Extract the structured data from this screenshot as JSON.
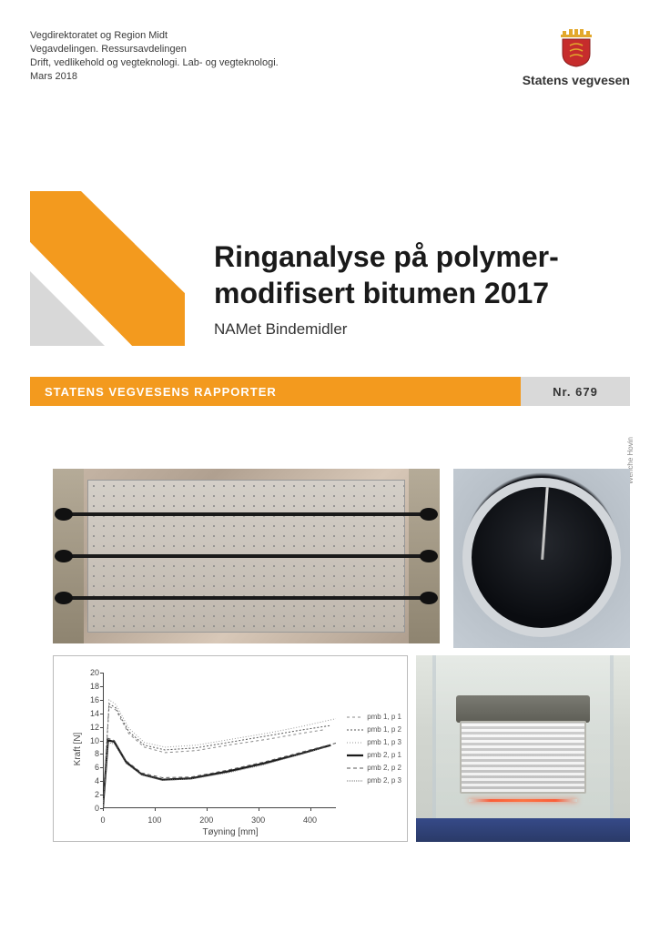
{
  "header": {
    "line1": "Vegdirektoratet og Region Midt",
    "line2": "Vegavdelingen. Ressursavdelingen",
    "line3": "Drift, vedlikehold og vegteknologi. Lab- og vegteknologi.",
    "line4": "Mars 2018"
  },
  "logo": {
    "text": "Statens vegvesen",
    "crown_color": "#e2a82c",
    "shield_color": "#c62c2c"
  },
  "geometric": {
    "orange": "#f39a1e",
    "gray": "#d8d8d8"
  },
  "title": {
    "line1": "Ringanalyse på polymer-",
    "line2": "modifisert bitumen 2017",
    "subtitle": "NAMet Bindemidler"
  },
  "banner": {
    "left": "STATENS VEGVESENS RAPPORTER",
    "right": "Nr. 679",
    "left_bg": "#f39a1e",
    "right_bg": "#d9d9d9"
  },
  "photo_credit": "Wenche Hovin",
  "chart": {
    "type": "line",
    "xlabel": "Tøyning [mm]",
    "ylabel": "Kraft [N]",
    "xlim": [
      0,
      450
    ],
    "ylim": [
      0,
      20
    ],
    "xtick_step": 100,
    "ytick_step": 2,
    "xticks": [
      0,
      100,
      200,
      300,
      400
    ],
    "yticks": [
      0,
      2,
      4,
      6,
      8,
      10,
      12,
      14,
      16,
      18,
      20
    ],
    "background_color": "#ffffff",
    "grid_color": "#e0e0e0",
    "axis_color": "#444444",
    "label_fontsize": 10,
    "tick_fontsize": 9,
    "legend_fontsize": 8,
    "series": [
      {
        "name": "pmb 1, p 1",
        "color": "#888888",
        "dash": "3,3",
        "width": 1,
        "points": [
          [
            0,
            0
          ],
          [
            12,
            15
          ],
          [
            25,
            14.5
          ],
          [
            50,
            11
          ],
          [
            80,
            9
          ],
          [
            120,
            8.2
          ],
          [
            180,
            8.5
          ],
          [
            250,
            9.4
          ],
          [
            320,
            10.2
          ],
          [
            380,
            11
          ],
          [
            430,
            11.6
          ]
        ]
      },
      {
        "name": "pmb 1, p 2",
        "color": "#555555",
        "dash": "2,2",
        "width": 1,
        "points": [
          [
            0,
            0
          ],
          [
            12,
            15.4
          ],
          [
            25,
            14.8
          ],
          [
            50,
            11.3
          ],
          [
            80,
            9.3
          ],
          [
            120,
            8.6
          ],
          [
            180,
            8.9
          ],
          [
            250,
            9.8
          ],
          [
            320,
            10.7
          ],
          [
            380,
            11.5
          ],
          [
            440,
            12.2
          ]
        ]
      },
      {
        "name": "pmb 1, p 3",
        "color": "#999999",
        "dash": "1,2",
        "width": 1,
        "points": [
          [
            0,
            0
          ],
          [
            12,
            16
          ],
          [
            25,
            15.3
          ],
          [
            50,
            11.8
          ],
          [
            80,
            9.7
          ],
          [
            120,
            9
          ],
          [
            180,
            9.3
          ],
          [
            250,
            10.2
          ],
          [
            320,
            11.1
          ],
          [
            380,
            12
          ],
          [
            450,
            13.2
          ]
        ]
      },
      {
        "name": "pmb 2, p 1",
        "color": "#1a1a1a",
        "dash": "",
        "width": 2.2,
        "points": [
          [
            0,
            0
          ],
          [
            10,
            10
          ],
          [
            22,
            9.8
          ],
          [
            45,
            6.8
          ],
          [
            75,
            5
          ],
          [
            115,
            4.2
          ],
          [
            170,
            4.4
          ],
          [
            240,
            5.4
          ],
          [
            310,
            6.6
          ],
          [
            380,
            8
          ],
          [
            440,
            9.3
          ]
        ]
      },
      {
        "name": "pmb 2, p 2",
        "color": "#555555",
        "dash": "4,3",
        "width": 1,
        "points": [
          [
            0,
            0
          ],
          [
            10,
            10.3
          ],
          [
            22,
            10
          ],
          [
            45,
            7
          ],
          [
            75,
            5.2
          ],
          [
            115,
            4.5
          ],
          [
            170,
            4.6
          ],
          [
            240,
            5.6
          ],
          [
            310,
            6.8
          ],
          [
            380,
            8.2
          ],
          [
            450,
            9.6
          ]
        ]
      },
      {
        "name": "pmb 2, p 3",
        "color": "#777777",
        "dash": "1,1",
        "width": 1,
        "points": [
          [
            0,
            0
          ],
          [
            10,
            9.7
          ],
          [
            22,
            9.5
          ],
          [
            45,
            6.6
          ],
          [
            75,
            4.9
          ],
          [
            115,
            4.1
          ],
          [
            170,
            4.3
          ],
          [
            240,
            5.2
          ],
          [
            310,
            6.4
          ],
          [
            370,
            7.7
          ],
          [
            430,
            9
          ]
        ]
      }
    ]
  }
}
